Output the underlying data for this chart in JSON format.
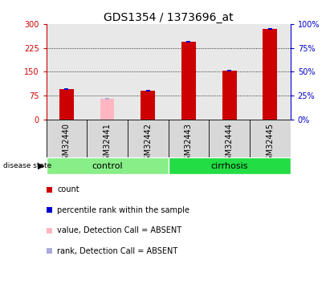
{
  "title": "GDS1354 / 1373696_at",
  "samples": [
    "GSM32440",
    "GSM32441",
    "GSM32442",
    "GSM32443",
    "GSM32444",
    "GSM32445"
  ],
  "red_bars": [
    95,
    0,
    90,
    245,
    153,
    285
  ],
  "pink_bars": [
    0,
    65,
    0,
    0,
    0,
    0
  ],
  "blue_pct": [
    30,
    0,
    28,
    53,
    46,
    54
  ],
  "light_blue_pct": [
    0,
    22,
    0,
    0,
    0,
    0
  ],
  "absent": [
    false,
    true,
    false,
    false,
    false,
    false
  ],
  "left_ylim": [
    0,
    300
  ],
  "right_ylim": [
    0,
    100
  ],
  "left_yticks": [
    0,
    75,
    150,
    225,
    300
  ],
  "right_yticks": [
    0,
    25,
    50,
    75,
    100
  ],
  "left_ytick_labels": [
    "0",
    "75",
    "150",
    "225",
    "300"
  ],
  "right_ytick_labels": [
    "0%",
    "25%",
    "50%",
    "75%",
    "100%"
  ],
  "groups": [
    {
      "label": "control",
      "samples": [
        0,
        1,
        2
      ],
      "color": "#88EE88"
    },
    {
      "label": "cirrhosis",
      "samples": [
        3,
        4,
        5
      ],
      "color": "#22DD44"
    }
  ],
  "red_color": "#CC0000",
  "pink_color": "#FFB6C1",
  "blue_color": "#0000CC",
  "light_blue_color": "#AAAADD",
  "bg_color": "#FFFFFF",
  "plot_bg": "#FFFFFF",
  "left_axis_color": "#CC0000",
  "right_axis_color": "#0000CC",
  "sample_bg_color": "#CCCCCC",
  "group_label_fontsize": 8,
  "tick_label_fontsize": 7,
  "title_fontsize": 10,
  "legend_fontsize": 7,
  "bar_width": 0.35
}
